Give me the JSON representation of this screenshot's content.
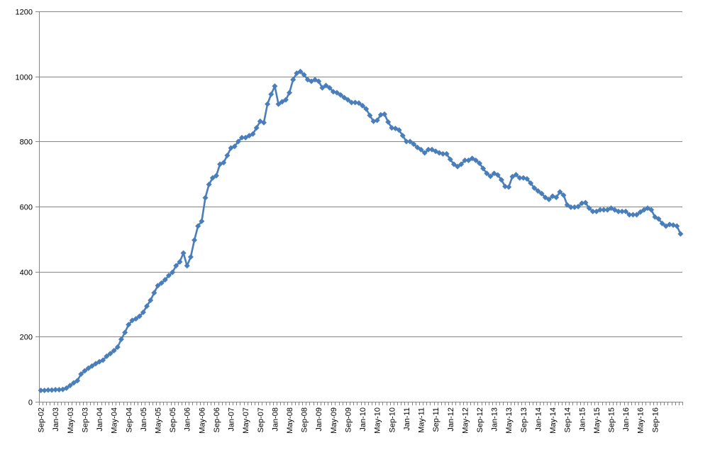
{
  "colors": {
    "series": "#4a7ebb",
    "grid": "#868686",
    "background": "#ffffff"
  },
  "chart_data": {
    "type": "line",
    "title": "",
    "xlabel": "",
    "ylabel": "",
    "ylim": [
      0,
      1200
    ],
    "yticks": [
      0,
      200,
      400,
      600,
      800,
      1000,
      1200
    ],
    "grid": "horizontal",
    "legend": "none",
    "x_tick_labels": [
      "Sep-02",
      "Jan-03",
      "May-03",
      "Sep-03",
      "Jan-04",
      "May-04",
      "Sep-04",
      "Jan-05",
      "May-05",
      "Sep-05",
      "Jan-06",
      "May-06",
      "Sep-06",
      "Jan-07",
      "May-07",
      "Sep-07",
      "Jan-08",
      "May-08",
      "Sep-08",
      "Jan-09",
      "May-09",
      "Sep-09",
      "Jan-10",
      "May-10",
      "Sep-10",
      "Jan-11",
      "May-11",
      "Sep-11",
      "Jan-12",
      "May-12",
      "Sep-12",
      "Jan-13",
      "May-13",
      "Sep-13",
      "Jan-14",
      "May-14",
      "Sep-14",
      "Jan-15",
      "May-15",
      "Sep-15",
      "Jan-16",
      "May-16",
      "Sep-16"
    ],
    "x_start": "Sep-02",
    "x_end": "Oct-16",
    "series": [
      {
        "name": "",
        "marker": "diamond",
        "values": [
          35,
          35,
          36,
          36,
          37,
          37,
          38,
          42,
          50,
          58,
          65,
          85,
          95,
          103,
          110,
          117,
          123,
          128,
          140,
          148,
          157,
          168,
          192,
          213,
          237,
          250,
          255,
          263,
          275,
          294,
          312,
          335,
          357,
          365,
          375,
          388,
          398,
          418,
          430,
          457,
          418,
          445,
          497,
          540,
          555,
          627,
          668,
          688,
          695,
          730,
          735,
          757,
          780,
          785,
          800,
          812,
          812,
          818,
          823,
          842,
          862,
          858,
          915,
          945,
          970,
          915,
          922,
          928,
          950,
          990,
          1010,
          1015,
          1005,
          990,
          985,
          990,
          985,
          965,
          972,
          965,
          953,
          950,
          943,
          935,
          928,
          920,
          920,
          918,
          910,
          900,
          880,
          862,
          865,
          882,
          884,
          860,
          842,
          840,
          835,
          818,
          800,
          800,
          792,
          782,
          775,
          765,
          775,
          775,
          770,
          765,
          762,
          762,
          745,
          730,
          723,
          730,
          742,
          742,
          748,
          742,
          733,
          717,
          702,
          693,
          702,
          697,
          682,
          662,
          660,
          692,
          698,
          688,
          688,
          685,
          672,
          657,
          648,
          640,
          628,
          622,
          632,
          628,
          645,
          635,
          605,
          598,
          598,
          600,
          610,
          612,
          595,
          585,
          585,
          590,
          590,
          590,
          595,
          590,
          585,
          585,
          585,
          575,
          575,
          575,
          583,
          590,
          595,
          590,
          568,
          562,
          548,
          540,
          545,
          543,
          540,
          516
        ]
      }
    ]
  }
}
